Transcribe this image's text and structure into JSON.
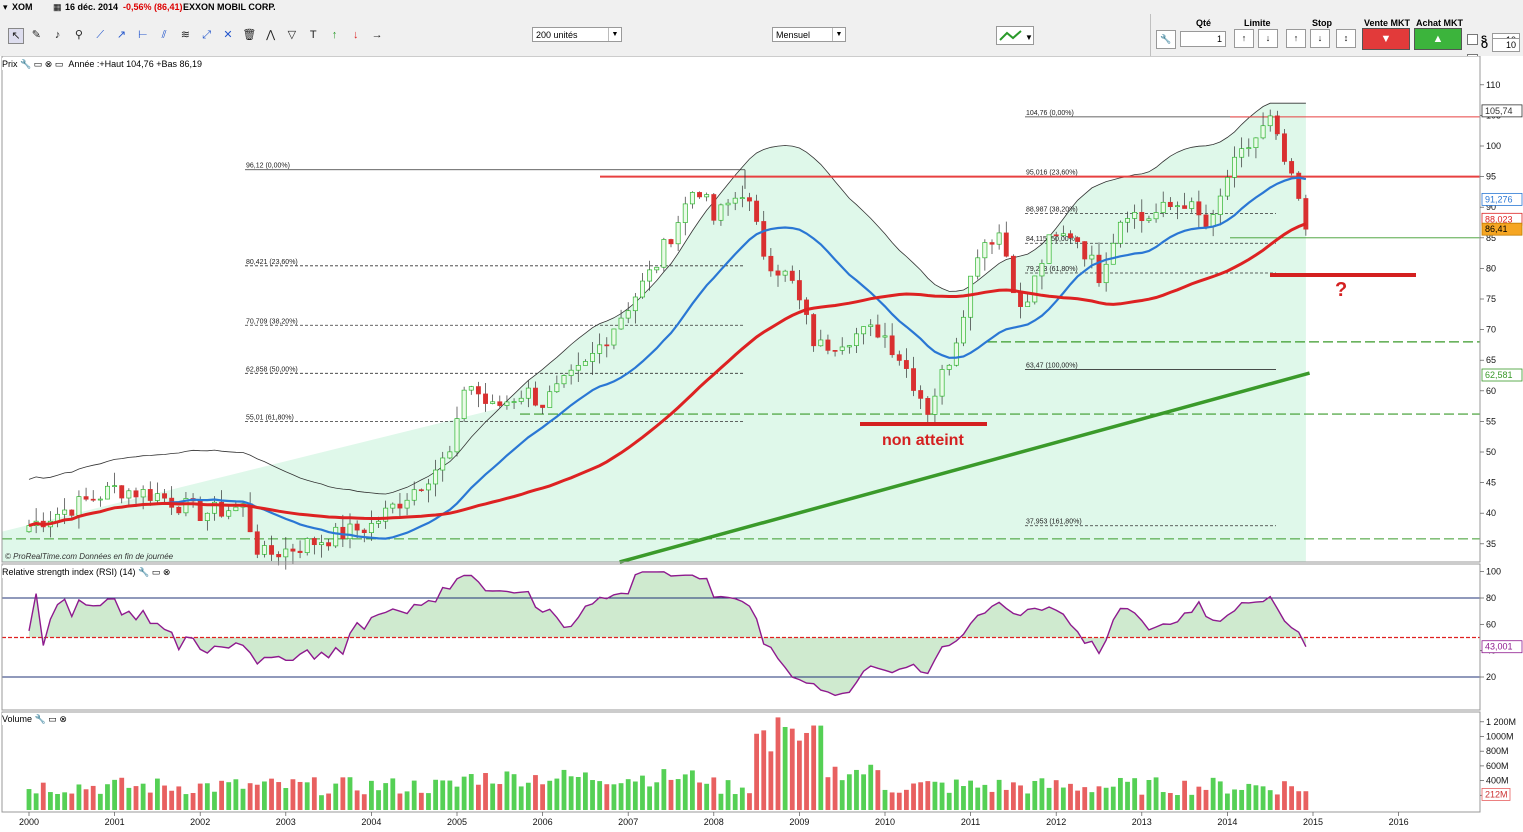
{
  "titlebar": {
    "symbol": "XOM",
    "date": "16 déc. 2014",
    "change": "-0,56% (86,41)",
    "name": "EXXON MOBIL CORP."
  },
  "toolbar": {
    "quantity_select": "200 unités",
    "period_select": "Mensuel",
    "qty_label": "Qté",
    "qty_value": "1",
    "limit_label": "Limite",
    "stop_label": "Stop",
    "sell_label": "Vente MKT",
    "buy_label": "Achat MKT",
    "s_label": "S",
    "s_value": "10",
    "o_label": "O",
    "o_value": "10",
    "tool_icons": [
      "cursor-icon",
      "pencil-icon",
      "bell-icon",
      "zoom-icon",
      "line-icon",
      "ray-icon",
      "hline-icon",
      "fork-icon",
      "fibonacci-icon",
      "channel-icon",
      "tools-icon",
      "trash-icon",
      "pattern-icon",
      "triangle-icon",
      "text-icon",
      "buy-arrow-icon",
      "sell-arrow-icon",
      "right-arrow-icon"
    ]
  },
  "price_panel": {
    "label": "Prix",
    "info": "Année :+Haut 104,76 +Bas 86,19",
    "watermark": "© ProRealTime.com Données en fin de journée"
  },
  "rsi_panel": {
    "label": "Relative strength index (RSI) (14)"
  },
  "volume_panel": {
    "label": "Volume"
  },
  "annotations": {
    "not_reached": "non atteint",
    "question": "?"
  },
  "colors": {
    "candle_up": "#2fb52f",
    "candle_down": "#d93030",
    "ma_short": "#2a77d4",
    "ma_long": "#dd2222",
    "band_fill": "#dff8ea",
    "trend_green": "#3a9a2a",
    "resistance_red": "#e84040",
    "rsi_line": "#8e1a8e",
    "volume_up": "#55d055",
    "volume_down": "#e86060"
  },
  "chart_data": [
    {
      "type": "candlestick",
      "title": "XOM - EXXON MOBIL CORP. (Mensuel)",
      "x_ticks": [
        "2000",
        "2001",
        "2002",
        "2003",
        "2004",
        "2005",
        "2006",
        "2007",
        "2008",
        "2009",
        "2010",
        "2011",
        "2012",
        "2013",
        "2014",
        "2015",
        "2016"
      ],
      "y_ticks": [
        35,
        40,
        45,
        50,
        55,
        60,
        65,
        70,
        75,
        80,
        85,
        90,
        95,
        100,
        105,
        110
      ],
      "ylim": [
        33,
        113
      ],
      "close_series_anchors": [
        {
          "x": 2000.0,
          "y": 38
        },
        {
          "x": 2000.5,
          "y": 41
        },
        {
          "x": 2001.0,
          "y": 44
        },
        {
          "x": 2001.5,
          "y": 43
        },
        {
          "x": 2002.0,
          "y": 40
        },
        {
          "x": 2002.5,
          "y": 41
        },
        {
          "x": 2002.7,
          "y": 33
        },
        {
          "x": 2003.0,
          "y": 34
        },
        {
          "x": 2003.5,
          "y": 36
        },
        {
          "x": 2004.0,
          "y": 38
        },
        {
          "x": 2004.5,
          "y": 44
        },
        {
          "x": 2004.95,
          "y": 50
        },
        {
          "x": 2005.1,
          "y": 62
        },
        {
          "x": 2005.4,
          "y": 57
        },
        {
          "x": 2005.8,
          "y": 60
        },
        {
          "x": 2006.0,
          "y": 58
        },
        {
          "x": 2006.5,
          "y": 64
        },
        {
          "x": 2006.9,
          "y": 72
        },
        {
          "x": 2007.3,
          "y": 80
        },
        {
          "x": 2007.8,
          "y": 94
        },
        {
          "x": 2008.0,
          "y": 88
        },
        {
          "x": 2008.35,
          "y": 93
        },
        {
          "x": 2008.6,
          "y": 82
        },
        {
          "x": 2008.9,
          "y": 78
        },
        {
          "x": 2009.2,
          "y": 67
        },
        {
          "x": 2009.6,
          "y": 69
        },
        {
          "x": 2009.95,
          "y": 70
        },
        {
          "x": 2010.2,
          "y": 65
        },
        {
          "x": 2010.5,
          "y": 57
        },
        {
          "x": 2010.8,
          "y": 67
        },
        {
          "x": 2011.1,
          "y": 84
        },
        {
          "x": 2011.35,
          "y": 86
        },
        {
          "x": 2011.6,
          "y": 72
        },
        {
          "x": 2011.9,
          "y": 84
        },
        {
          "x": 2012.2,
          "y": 86
        },
        {
          "x": 2012.5,
          "y": 79
        },
        {
          "x": 2012.8,
          "y": 90
        },
        {
          "x": 2013.0,
          "y": 88
        },
        {
          "x": 2013.5,
          "y": 91
        },
        {
          "x": 2013.8,
          "y": 86
        },
        {
          "x": 2014.0,
          "y": 95
        },
        {
          "x": 2014.25,
          "y": 100
        },
        {
          "x": 2014.5,
          "y": 104
        },
        {
          "x": 2014.75,
          "y": 94
        },
        {
          "x": 2014.96,
          "y": 86.41
        }
      ],
      "indicators": [
        {
          "name": "MA short",
          "last": "91,276"
        },
        {
          "name": "MA long",
          "last": "88,023"
        },
        {
          "name": "Upper channel",
          "last": "105,74"
        },
        {
          "name": "Long-term trendline",
          "last": "62,581"
        }
      ],
      "last_price": "86,41",
      "fibonacci_sets": [
        {
          "levels": [
            {
              "label": "96,12 (0,00%)",
              "value": 96.12
            },
            {
              "label": "80,421 (23,60%)",
              "value": 80.421
            },
            {
              "label": "70,709 (38,20%)",
              "value": 70.709
            },
            {
              "label": "62,858 (50,00%)",
              "value": 62.858
            },
            {
              "label": "55,01 (61,80%)",
              "value": 55.01
            }
          ]
        },
        {
          "levels": [
            {
              "label": "104,76 (0,00%)",
              "value": 104.76
            },
            {
              "label": "95,016 (23,60%)",
              "value": 95.016
            },
            {
              "label": "88,987 (38,20%)",
              "value": 88.987
            },
            {
              "label": "84,115 (50,00%)",
              "value": 84.115
            },
            {
              "label": "79,243 (61,80%)",
              "value": 79.243
            },
            {
              "label": "63,47 (100,00%)",
              "value": 63.47
            },
            {
              "label": "37,953 (161,80%)",
              "value": 37.953
            }
          ]
        }
      ]
    },
    {
      "type": "line",
      "title": "Relative strength index (RSI) (14)",
      "y_ticks": [
        20,
        40,
        60,
        80,
        100
      ],
      "ylim": [
        15,
        105
      ],
      "reference_lines": [
        50,
        80,
        20
      ],
      "last": "43,001"
    },
    {
      "type": "bar",
      "title": "Volume",
      "y_ticks": [
        "200M",
        "400M",
        "600M",
        "800M",
        "1000M",
        "1 200M"
      ],
      "last": "212M"
    }
  ]
}
